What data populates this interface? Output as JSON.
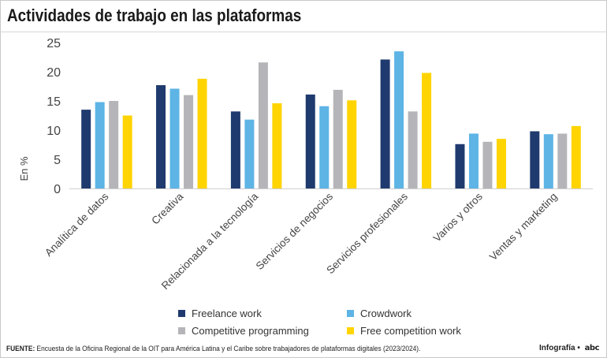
{
  "title": "Actividades de trabajo en las plataformas",
  "footer": {
    "source_label": "FUENTE:",
    "source_text": "Encuesta de la Oficina Regional de la OIT para América Latina y el Caribe sobre trabajadores de plataformas digitales (2023/2024).",
    "credit_label": "Infografía •",
    "credit_logo": "abc"
  },
  "chart_data": {
    "type": "bar",
    "title": "Actividades de trabajo en las plataformas",
    "xlabel": "",
    "ylabel": "En %",
    "ylim": [
      0,
      25
    ],
    "yticks": [
      0,
      5,
      10,
      15,
      20,
      25
    ],
    "grid": false,
    "legend_position": "bottom",
    "categories": [
      "Analítica de datos",
      "Creativa",
      "Relacionada a la tecnología",
      "Servicios de negocios",
      "Servicios profesionales",
      "Varios y otros",
      "Ventas y marketing"
    ],
    "series": [
      {
        "name": "Freelance work",
        "color": "#1f3a6e",
        "values": [
          13.5,
          17.7,
          13.2,
          16.1,
          22.1,
          7.6,
          9.8
        ]
      },
      {
        "name": "Crowdwork",
        "color": "#5db4e5",
        "values": [
          14.8,
          17.1,
          11.8,
          14.1,
          23.5,
          9.4,
          9.3
        ]
      },
      {
        "name": "Competitive programming",
        "color": "#b5b5b9",
        "values": [
          15.0,
          16.0,
          21.6,
          16.9,
          13.2,
          8.0,
          9.4
        ]
      },
      {
        "name": "Free competition work",
        "color": "#ffd400",
        "values": [
          12.5,
          18.8,
          14.6,
          15.1,
          19.8,
          8.5,
          10.7
        ]
      }
    ]
  }
}
